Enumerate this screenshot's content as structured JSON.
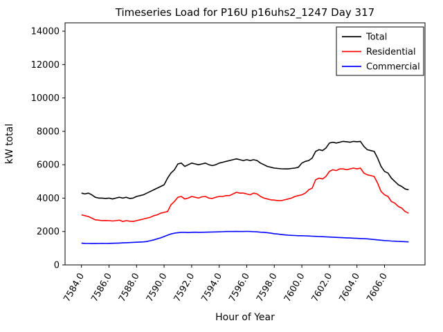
{
  "chart_data": {
    "type": "line",
    "title": "Timeseries Load for P16U p16uhs2_1247  Day 317",
    "xlabel": "Hour of Year",
    "ylabel": "kW total",
    "xlim": [
      7582.81,
      7608.94
    ],
    "ylim": [
      0,
      14500
    ],
    "x_start": 7584.0,
    "x_step": 0.25,
    "n_points": 96,
    "xticks": [
      7584,
      7586,
      7588,
      7590,
      7592,
      7594,
      7596,
      7598,
      7600,
      7602,
      7604,
      7606
    ],
    "xtick_labels": [
      "7584.0",
      "7586.0",
      "7588.0",
      "7590.0",
      "7592.0",
      "7594.0",
      "7596.0",
      "7598.0",
      "7600.0",
      "7602.0",
      "7604.0",
      "7606.0"
    ],
    "yticks": [
      0,
      2000,
      4000,
      6000,
      8000,
      10000,
      12000,
      14000
    ],
    "ytick_labels": [
      "0",
      "2000",
      "4000",
      "6000",
      "8000",
      "10000",
      "12000",
      "14000"
    ],
    "grid": false,
    "legend_position": "upper right",
    "background_color": "#ffffff",
    "axes_edge_color": "#000000",
    "series": [
      {
        "name": "Total",
        "color": "#000000",
        "values": [
          4300,
          4250,
          4300,
          4200,
          4050,
          4000,
          4000,
          3980,
          4000,
          3950,
          4000,
          4050,
          4000,
          4050,
          3980,
          4000,
          4100,
          4150,
          4200,
          4300,
          4400,
          4500,
          4600,
          4700,
          4800,
          5200,
          5500,
          5700,
          6050,
          6100,
          5900,
          6000,
          6100,
          6050,
          6000,
          6050,
          6100,
          6000,
          5950,
          6000,
          6100,
          6150,
          6200,
          6250,
          6300,
          6350,
          6300,
          6250,
          6300,
          6250,
          6300,
          6250,
          6100,
          6000,
          5900,
          5850,
          5800,
          5780,
          5760,
          5750,
          5750,
          5780,
          5800,
          5850,
          6100,
          6200,
          6250,
          6400,
          6800,
          6900,
          6850,
          7000,
          7300,
          7350,
          7300,
          7350,
          7400,
          7380,
          7350,
          7400,
          7380,
          7400,
          7100,
          6900,
          6850,
          6800,
          6400,
          5900,
          5600,
          5500,
          5200,
          5000,
          4800,
          4700,
          4550,
          4500
        ]
      },
      {
        "name": "Residential",
        "color": "#ff0000",
        "values": [
          3000,
          2950,
          2900,
          2800,
          2700,
          2680,
          2650,
          2660,
          2650,
          2630,
          2650,
          2680,
          2600,
          2650,
          2620,
          2600,
          2650,
          2700,
          2750,
          2800,
          2850,
          2950,
          3000,
          3100,
          3150,
          3200,
          3600,
          3800,
          4050,
          4100,
          3950,
          4000,
          4100,
          4050,
          4000,
          4080,
          4100,
          4000,
          3980,
          4050,
          4100,
          4100,
          4150,
          4150,
          4250,
          4350,
          4300,
          4300,
          4250,
          4200,
          4300,
          4250,
          4100,
          4000,
          3950,
          3900,
          3880,
          3850,
          3850,
          3900,
          3950,
          4000,
          4100,
          4150,
          4200,
          4300,
          4500,
          4600,
          5100,
          5200,
          5150,
          5300,
          5600,
          5700,
          5650,
          5750,
          5750,
          5700,
          5750,
          5800,
          5750,
          5800,
          5500,
          5400,
          5350,
          5300,
          4900,
          4400,
          4200,
          4100,
          3800,
          3700,
          3500,
          3400,
          3200,
          3100
        ]
      },
      {
        "name": "Commercial",
        "color": "#0000ff",
        "values": [
          1300,
          1290,
          1285,
          1280,
          1280,
          1285,
          1290,
          1285,
          1290,
          1295,
          1300,
          1310,
          1320,
          1330,
          1340,
          1350,
          1360,
          1370,
          1380,
          1400,
          1450,
          1500,
          1560,
          1620,
          1700,
          1780,
          1850,
          1900,
          1930,
          1950,
          1950,
          1940,
          1950,
          1960,
          1950,
          1955,
          1960,
          1965,
          1970,
          1975,
          1980,
          1990,
          2000,
          2000,
          2000,
          2005,
          2000,
          2000,
          2010,
          2000,
          1990,
          1980,
          1960,
          1950,
          1930,
          1900,
          1870,
          1850,
          1820,
          1800,
          1780,
          1770,
          1760,
          1750,
          1750,
          1740,
          1730,
          1720,
          1710,
          1700,
          1690,
          1680,
          1670,
          1660,
          1650,
          1640,
          1630,
          1620,
          1610,
          1600,
          1590,
          1580,
          1570,
          1560,
          1540,
          1520,
          1500,
          1480,
          1460,
          1450,
          1430,
          1420,
          1410,
          1400,
          1390,
          1380
        ]
      }
    ],
    "legend": {
      "entries": [
        {
          "label": "Total",
          "color": "#000000"
        },
        {
          "label": "Residential",
          "color": "#ff0000"
        },
        {
          "label": "Commercial",
          "color": "#0000ff"
        }
      ]
    }
  }
}
